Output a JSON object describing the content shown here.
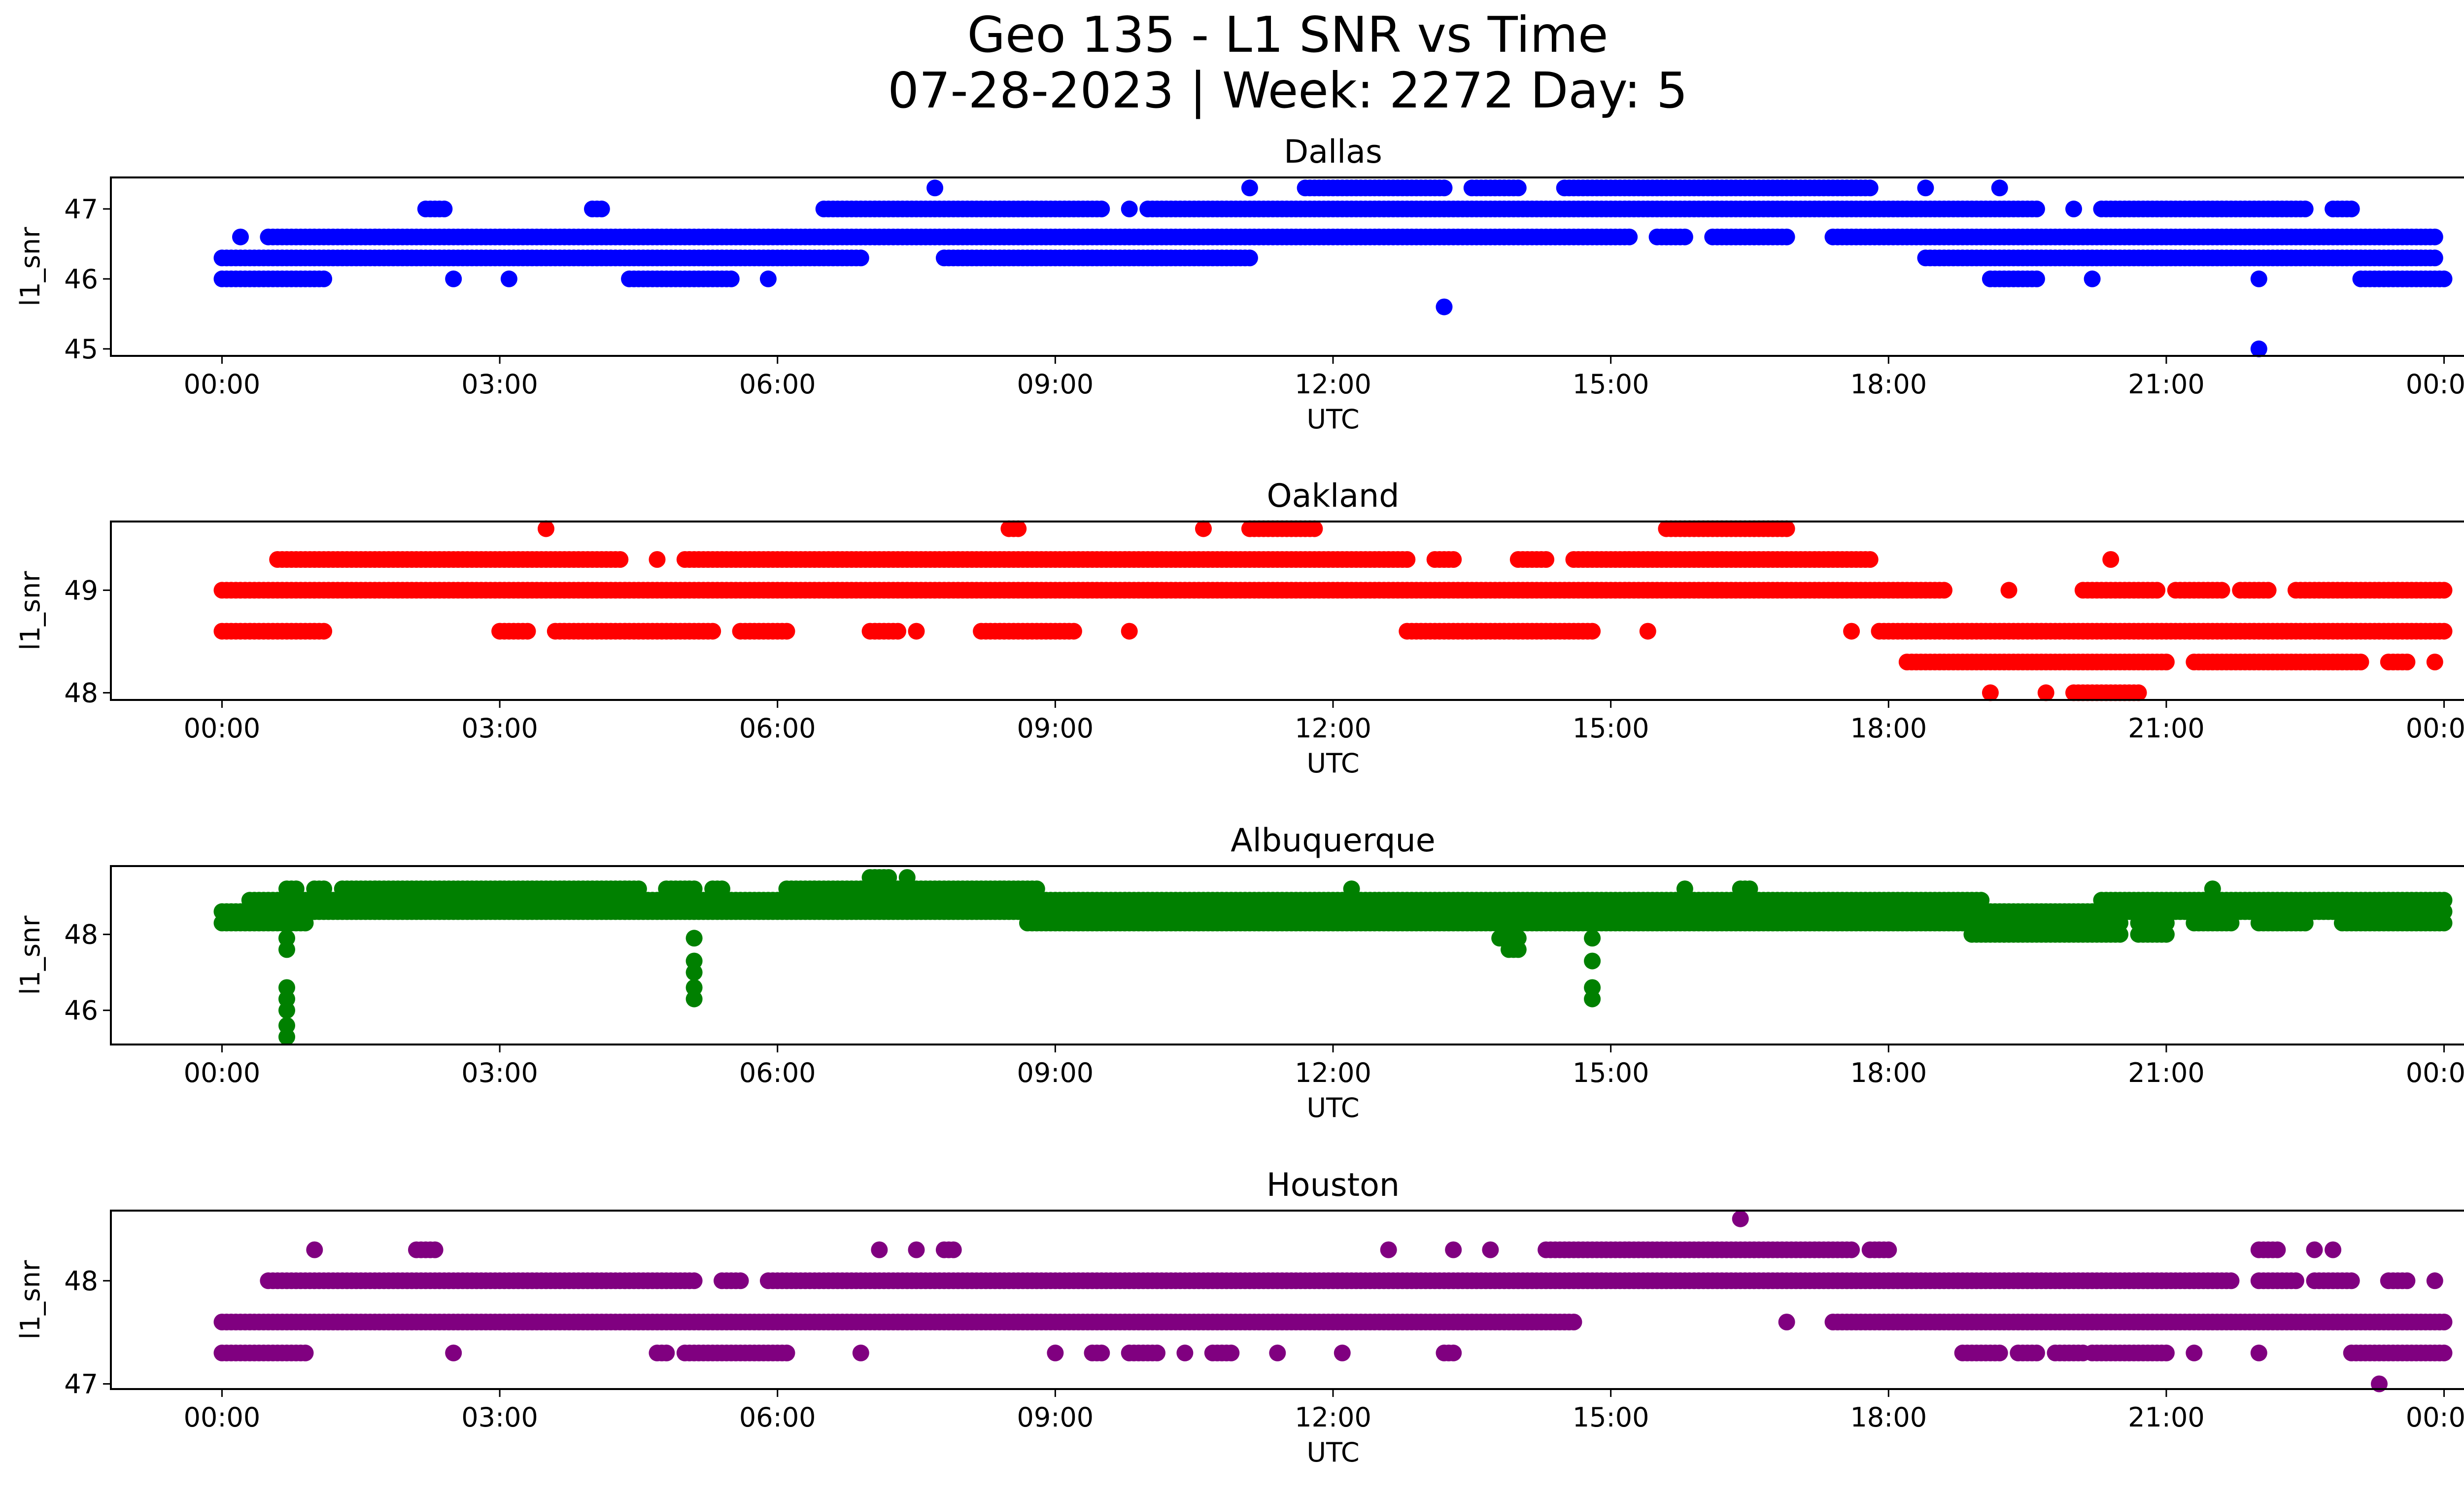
{
  "figure": {
    "title_line1": "Geo 135 - L1 SNR vs Time",
    "title_line2": "07-28-2023 | Week: 2272 Day: 5"
  },
  "chart_data": [
    {
      "type": "scatter",
      "title": "Dallas",
      "xlabel": "UTC",
      "ylabel": "l1_snr",
      "color": "#0000ff",
      "xlim": [
        "-01:12",
        "01:12 (+1 day)"
      ],
      "ylim": [
        44.9,
        47.45
      ],
      "x_ticks": [
        "00:00",
        "03:00",
        "06:00",
        "09:00",
        "12:00",
        "15:00",
        "18:00",
        "21:00",
        "00:00"
      ],
      "y_ticks": [
        45,
        46,
        47
      ],
      "series": [
        {
          "values": [
            {
              "y": 46.0,
              "x_hours": [
                [
                  0.0,
                  1.1
                ],
                [
                  2.5,
                  2.5
                ],
                [
                  3.1,
                  3.1
                ],
                [
                  4.4,
                  5.5
                ],
                [
                  5.9,
                  5.9
                ],
                [
                  19.1,
                  19.6
                ],
                [
                  20.2,
                  20.2
                ],
                [
                  22.0,
                  22.0
                ],
                [
                  23.1,
                  24.0
                ]
              ]
            },
            {
              "y": 46.3,
              "x_hours": [
                [
                  0.0,
                  6.9
                ],
                [
                  7.8,
                  11.1
                ],
                [
                  18.4,
                  23.9
                ]
              ]
            },
            {
              "y": 46.6,
              "x_hours": [
                [
                  0.2,
                  0.2
                ],
                [
                  0.5,
                  15.2
                ],
                [
                  15.5,
                  15.8
                ],
                [
                  16.1,
                  16.9
                ],
                [
                  17.4,
                  23.9
                ]
              ]
            },
            {
              "y": 47.0,
              "x_hours": [
                [
                  2.2,
                  2.4
                ],
                [
                  4.0,
                  4.1
                ],
                [
                  6.5,
                  9.5
                ],
                [
                  9.8,
                  9.8
                ],
                [
                  10.0,
                  19.6
                ],
                [
                  20.0,
                  20.0
                ],
                [
                  20.3,
                  22.5
                ],
                [
                  22.8,
                  23.0
                ]
              ]
            },
            {
              "y": 47.3,
              "x_hours": [
                [
                  7.7,
                  7.7
                ],
                [
                  11.1,
                  11.1
                ],
                [
                  11.7,
                  13.2
                ],
                [
                  13.5,
                  14.0
                ],
                [
                  14.5,
                  17.8
                ],
                [
                  18.4,
                  18.4
                ],
                [
                  19.2,
                  19.2
                ]
              ]
            },
            {
              "y": 45.6,
              "x_hours": [
                [
                  13.2,
                  13.2
                ]
              ]
            },
            {
              "y": 45.0,
              "x_hours": [
                [
                  22.0,
                  22.0
                ]
              ]
            }
          ]
        }
      ]
    },
    {
      "type": "scatter",
      "title": "Oakland",
      "xlabel": "UTC",
      "ylabel": "l1_snr",
      "color": "#ff0000",
      "xlim": [
        "-01:12",
        "01:12 (+1 day)"
      ],
      "ylim": [
        47.93,
        49.67
      ],
      "x_ticks": [
        "00:00",
        "03:00",
        "06:00",
        "09:00",
        "12:00",
        "15:00",
        "18:00",
        "21:00",
        "00:00"
      ],
      "y_ticks": [
        48,
        49
      ],
      "series": [
        {
          "values": [
            {
              "y": 48.0,
              "x_hours": [
                [
                  19.1,
                  19.1
                ],
                [
                  19.7,
                  19.7
                ],
                [
                  20.0,
                  20.7
                ]
              ]
            },
            {
              "y": 48.3,
              "x_hours": [
                [
                  18.2,
                  21.0
                ],
                [
                  21.3,
                  23.1
                ],
                [
                  23.4,
                  23.6
                ],
                [
                  23.9,
                  23.9
                ]
              ]
            },
            {
              "y": 48.6,
              "x_hours": [
                [
                  0.0,
                  1.1
                ],
                [
                  3.0,
                  3.3
                ],
                [
                  3.6,
                  5.3
                ],
                [
                  5.6,
                  6.1
                ],
                [
                  7.0,
                  7.3
                ],
                [
                  7.5,
                  7.5
                ],
                [
                  8.2,
                  9.2
                ],
                [
                  9.8,
                  9.8
                ],
                [
                  12.8,
                  14.8
                ],
                [
                  15.4,
                  15.4
                ],
                [
                  17.6,
                  17.6
                ],
                [
                  17.9,
                  24.0
                ]
              ]
            },
            {
              "y": 49.0,
              "x_hours": [
                [
                  0.0,
                  18.6
                ],
                [
                  19.3,
                  19.3
                ],
                [
                  20.1,
                  20.9
                ],
                [
                  21.1,
                  21.6
                ],
                [
                  21.8,
                  22.1
                ],
                [
                  22.4,
                  24.0
                ]
              ]
            },
            {
              "y": 49.3,
              "x_hours": [
                [
                  0.6,
                  4.3
                ],
                [
                  4.7,
                  4.7
                ],
                [
                  5.0,
                  12.8
                ],
                [
                  13.1,
                  13.3
                ],
                [
                  14.0,
                  14.3
                ],
                [
                  14.6,
                  17.8
                ],
                [
                  20.4,
                  20.4
                ]
              ]
            },
            {
              "y": 49.6,
              "x_hours": [
                [
                  3.5,
                  3.5
                ],
                [
                  8.5,
                  8.6
                ],
                [
                  10.6,
                  10.6
                ],
                [
                  11.1,
                  11.8
                ],
                [
                  15.6,
                  16.9
                ]
              ]
            }
          ]
        }
      ]
    },
    {
      "type": "scatter",
      "title": "Albuquerque",
      "xlabel": "UTC",
      "ylabel": "l1_snr",
      "color": "#008000",
      "xlim": [
        "-01:12",
        "01:12 (+1 day)"
      ],
      "ylim": [
        45.1,
        49.8
      ],
      "x_ticks": [
        "00:00",
        "03:00",
        "06:00",
        "09:00",
        "12:00",
        "15:00",
        "18:00",
        "21:00",
        "00:00"
      ],
      "y_ticks": [
        46,
        48
      ],
      "series": [
        {
          "values": [
            {
              "y": 45.3,
              "x_hours": [
                [
                  0.7,
                  0.7
                ]
              ]
            },
            {
              "y": 45.6,
              "x_hours": [
                [
                  0.7,
                  0.7
                ]
              ]
            },
            {
              "y": 46.0,
              "x_hours": [
                [
                  0.7,
                  0.7
                ]
              ]
            },
            {
              "y": 46.3,
              "x_hours": [
                [
                  0.7,
                  0.7
                ],
                [
                  5.1,
                  5.1
                ],
                [
                  14.8,
                  14.8
                ]
              ]
            },
            {
              "y": 46.6,
              "x_hours": [
                [
                  0.7,
                  0.7
                ],
                [
                  5.1,
                  5.1
                ],
                [
                  14.8,
                  14.8
                ]
              ]
            },
            {
              "y": 47.0,
              "x_hours": [
                [
                  5.1,
                  5.1
                ]
              ]
            },
            {
              "y": 47.3,
              "x_hours": [
                [
                  5.1,
                  5.1
                ],
                [
                  14.8,
                  14.8
                ]
              ]
            },
            {
              "y": 47.6,
              "x_hours": [
                [
                  0.7,
                  0.7
                ],
                [
                  13.9,
                  14.0
                ]
              ]
            },
            {
              "y": 47.9,
              "x_hours": [
                [
                  0.7,
                  0.7
                ],
                [
                  5.1,
                  5.1
                ],
                [
                  13.8,
                  14.0
                ],
                [
                  14.8,
                  14.8
                ]
              ]
            },
            {
              "y": 48.0,
              "x_hours": [
                [
                  18.9,
                  20.5
                ],
                [
                  20.7,
                  21.0
                ]
              ]
            },
            {
              "y": 48.3,
              "x_hours": [
                [
                  0.0,
                  0.9
                ],
                [
                  8.7,
                  20.5
                ],
                [
                  20.7,
                  21.0
                ],
                [
                  21.3,
                  21.7
                ],
                [
                  22.0,
                  22.5
                ],
                [
                  22.9,
                  24.0
                ]
              ]
            },
            {
              "y": 48.6,
              "x_hours": [
                [
                  0.0,
                  24.0
                ]
              ]
            },
            {
              "y": 48.9,
              "x_hours": [
                [
                  0.3,
                  19.0
                ],
                [
                  20.3,
                  24.0
                ]
              ]
            },
            {
              "y": 49.2,
              "x_hours": [
                [
                  0.7,
                  0.8
                ],
                [
                  1.0,
                  1.1
                ],
                [
                  1.3,
                  4.5
                ],
                [
                  4.8,
                  5.1
                ],
                [
                  5.3,
                  5.4
                ],
                [
                  6.1,
                  8.8
                ],
                [
                  12.2,
                  12.2
                ],
                [
                  15.8,
                  15.8
                ],
                [
                  16.4,
                  16.5
                ],
                [
                  21.5,
                  21.5
                ]
              ]
            },
            {
              "y": 49.5,
              "x_hours": [
                [
                  7.0,
                  7.2
                ],
                [
                  7.4,
                  7.4
                ]
              ]
            }
          ]
        }
      ]
    },
    {
      "type": "scatter",
      "title": "Houston",
      "xlabel": "UTC",
      "ylabel": "l1_snr",
      "color": "#800080",
      "xlim": [
        "-01:12",
        "01:12 (+1 day)"
      ],
      "ylim": [
        46.95,
        48.68
      ],
      "x_ticks": [
        "00:00",
        "03:00",
        "06:00",
        "09:00",
        "12:00",
        "15:00",
        "18:00",
        "21:00",
        "00:00"
      ],
      "y_ticks": [
        47,
        48
      ],
      "series": [
        {
          "values": [
            {
              "y": 47.0,
              "x_hours": [
                [
                  23.3,
                  23.3
                ]
              ]
            },
            {
              "y": 47.3,
              "x_hours": [
                [
                  0.0,
                  0.9
                ],
                [
                  2.5,
                  2.5
                ],
                [
                  4.7,
                  4.8
                ],
                [
                  5.0,
                  6.1
                ],
                [
                  6.9,
                  6.9
                ],
                [
                  9.0,
                  9.0
                ],
                [
                  9.4,
                  9.5
                ],
                [
                  9.8,
                  10.1
                ],
                [
                  10.4,
                  10.4
                ],
                [
                  10.7,
                  10.9
                ],
                [
                  11.4,
                  11.4
                ],
                [
                  12.1,
                  12.1
                ],
                [
                  13.2,
                  13.3
                ],
                [
                  18.8,
                  19.2
                ],
                [
                  19.4,
                  19.6
                ],
                [
                  19.8,
                  20.1
                ],
                [
                  20.2,
                  21.0
                ],
                [
                  21.3,
                  21.3
                ],
                [
                  22.0,
                  22.0
                ],
                [
                  23.0,
                  24.0
                ]
              ]
            },
            {
              "y": 47.6,
              "x_hours": [
                [
                  0.0,
                  14.6
                ],
                [
                  16.9,
                  16.9
                ],
                [
                  17.4,
                  24.0
                ]
              ]
            },
            {
              "y": 48.0,
              "x_hours": [
                [
                  0.5,
                  5.1
                ],
                [
                  5.4,
                  5.6
                ],
                [
                  5.9,
                  21.7
                ],
                [
                  22.0,
                  22.4
                ],
                [
                  22.6,
                  23.0
                ],
                [
                  23.4,
                  23.6
                ],
                [
                  23.9,
                  23.9
                ]
              ]
            },
            {
              "y": 48.3,
              "x_hours": [
                [
                  1.0,
                  1.0
                ],
                [
                  2.1,
                  2.3
                ],
                [
                  7.1,
                  7.1
                ],
                [
                  7.5,
                  7.5
                ],
                [
                  7.8,
                  7.9
                ],
                [
                  12.6,
                  12.6
                ],
                [
                  13.3,
                  13.3
                ],
                [
                  13.7,
                  13.7
                ],
                [
                  14.3,
                  17.6
                ],
                [
                  17.8,
                  18.0
                ],
                [
                  22.0,
                  22.2
                ],
                [
                  22.6,
                  22.6
                ],
                [
                  22.8,
                  22.8
                ]
              ]
            },
            {
              "y": 48.6,
              "x_hours": [
                [
                  16.4,
                  16.4
                ]
              ]
            }
          ]
        }
      ]
    }
  ]
}
